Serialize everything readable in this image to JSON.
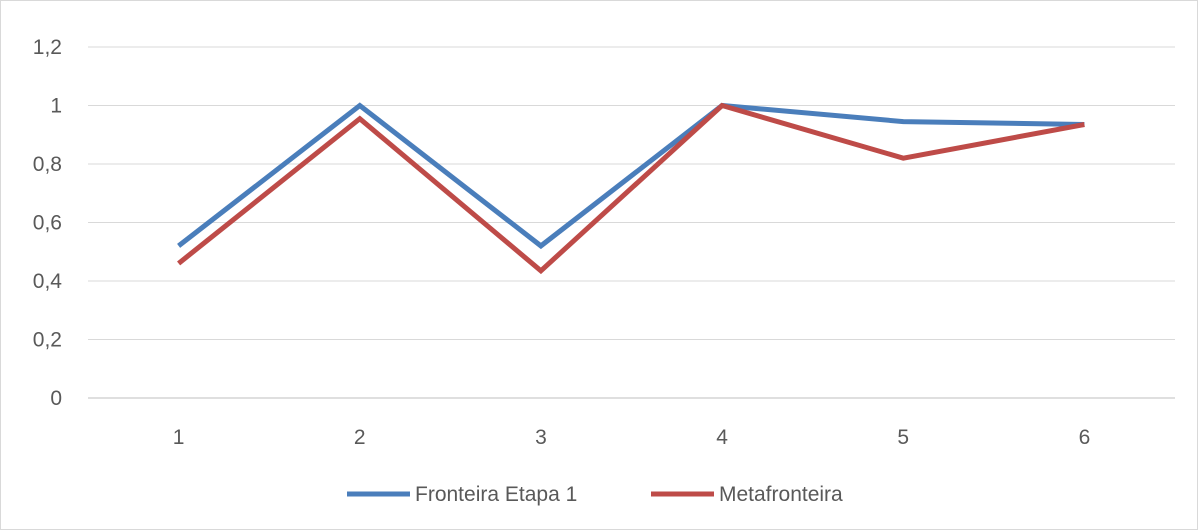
{
  "chart_data": {
    "type": "line",
    "title": "",
    "xlabel": "",
    "ylabel": "",
    "categories": [
      "1",
      "2",
      "3",
      "4",
      "5",
      "6"
    ],
    "ylim": [
      0,
      1.2
    ],
    "yticks": [
      "0",
      "0,2",
      "0,4",
      "0,6",
      "0,8",
      "1",
      "1,2"
    ],
    "grid": "horizontal",
    "legend_position": "bottom",
    "series": [
      {
        "name": "Fronteira Etapa 1",
        "color": "#4a7ebb",
        "values": [
          0.52,
          1.0,
          0.52,
          1.0,
          0.945,
          0.935
        ]
      },
      {
        "name": "Metafronteira",
        "color": "#be4b48",
        "values": [
          0.46,
          0.955,
          0.435,
          1.0,
          0.82,
          0.935
        ]
      }
    ]
  }
}
